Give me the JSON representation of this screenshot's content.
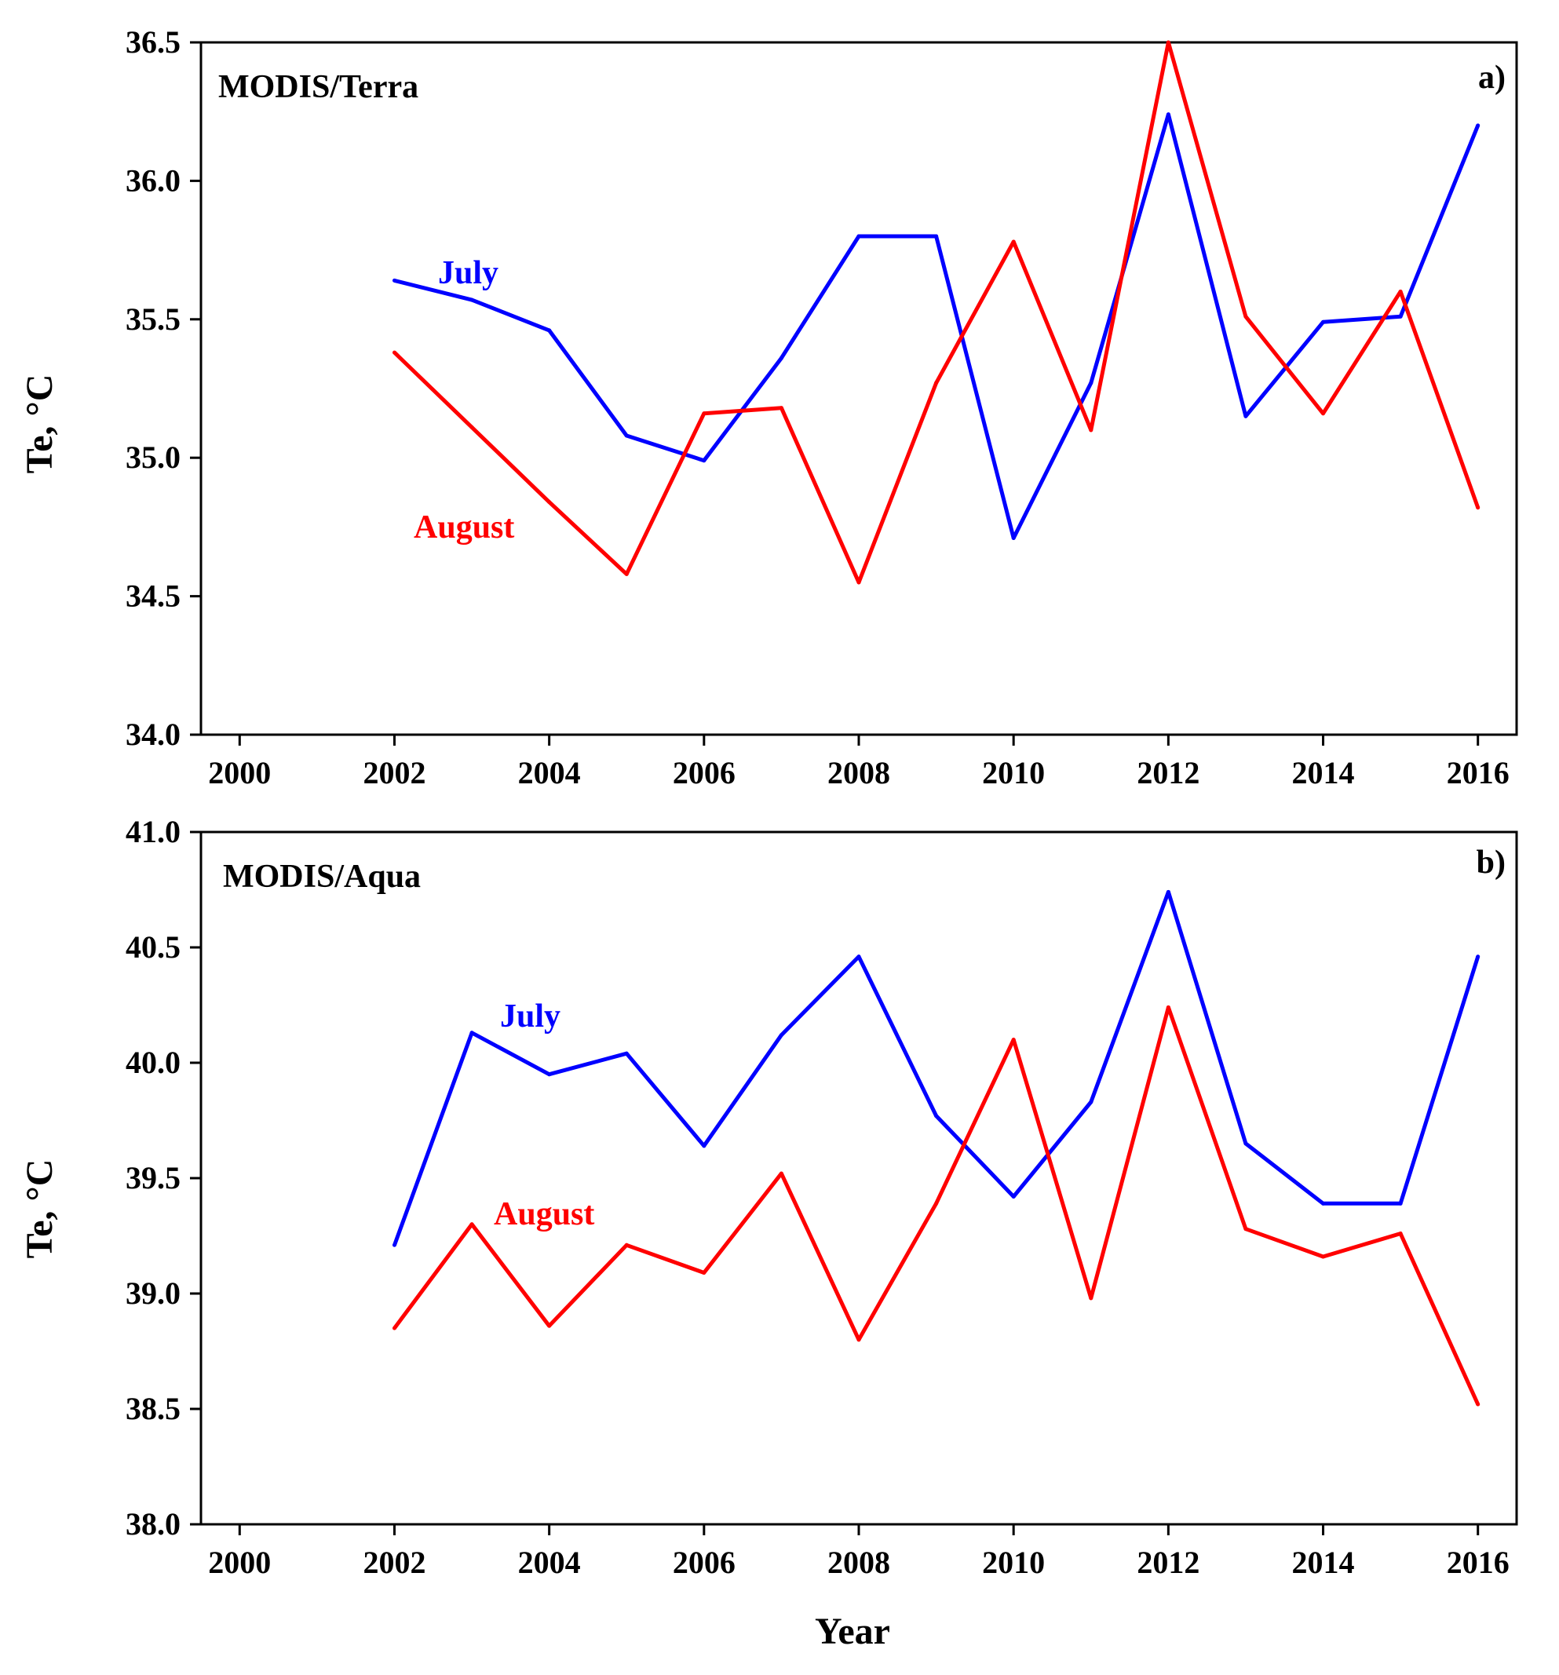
{
  "chart_data": [
    {
      "type": "line",
      "panel": "a)",
      "title": "MODIS/Terra",
      "xlabel": "",
      "ylabel": "Te, °C",
      "xlim": [
        1999.5,
        2016.5
      ],
      "ylim": [
        34.0,
        36.5
      ],
      "xticks": [
        2000,
        2002,
        2004,
        2006,
        2008,
        2010,
        2012,
        2014,
        2016
      ],
      "yticks": [
        34.0,
        34.5,
        35.0,
        35.5,
        36.0,
        36.5
      ],
      "x": [
        2002,
        2003,
        2004,
        2005,
        2006,
        2007,
        2008,
        2009,
        2010,
        2011,
        2012,
        2013,
        2014,
        2015,
        2016
      ],
      "series": [
        {
          "name": "July",
          "color": "#0000ff",
          "values": [
            35.64,
            35.57,
            35.46,
            35.08,
            34.99,
            35.36,
            35.8,
            35.8,
            34.71,
            35.27,
            36.24,
            35.15,
            35.49,
            35.51,
            36.2
          ]
        },
        {
          "name": "August",
          "color": "#ff0000",
          "values": [
            35.38,
            35.11,
            34.84,
            34.58,
            35.16,
            35.18,
            34.55,
            35.27,
            35.78,
            35.1,
            36.5,
            35.51,
            35.16,
            35.6,
            34.82
          ]
        }
      ]
    },
    {
      "type": "line",
      "panel": "b)",
      "title": "MODIS/Aqua",
      "xlabel": "Year",
      "ylabel": "Te, °C",
      "xlim": [
        1999.5,
        2016.5
      ],
      "ylim": [
        38.0,
        41.0
      ],
      "xticks": [
        2000,
        2002,
        2004,
        2006,
        2008,
        2010,
        2012,
        2014,
        2016
      ],
      "yticks": [
        38.0,
        38.5,
        39.0,
        39.5,
        40.0,
        40.5,
        41.0
      ],
      "x": [
        2002,
        2003,
        2004,
        2005,
        2006,
        2007,
        2008,
        2009,
        2010,
        2011,
        2012,
        2013,
        2014,
        2015,
        2016
      ],
      "series": [
        {
          "name": "July",
          "color": "#0000ff",
          "values": [
            39.21,
            40.13,
            39.95,
            40.04,
            39.64,
            40.12,
            40.46,
            39.77,
            39.42,
            39.83,
            40.74,
            39.65,
            39.39,
            39.39,
            40.46
          ]
        },
        {
          "name": "August",
          "color": "#ff0000",
          "values": [
            38.85,
            39.3,
            38.86,
            39.21,
            39.09,
            39.52,
            38.8,
            39.39,
            40.1,
            38.98,
            40.24,
            39.28,
            39.16,
            39.26,
            38.52
          ]
        }
      ]
    }
  ]
}
